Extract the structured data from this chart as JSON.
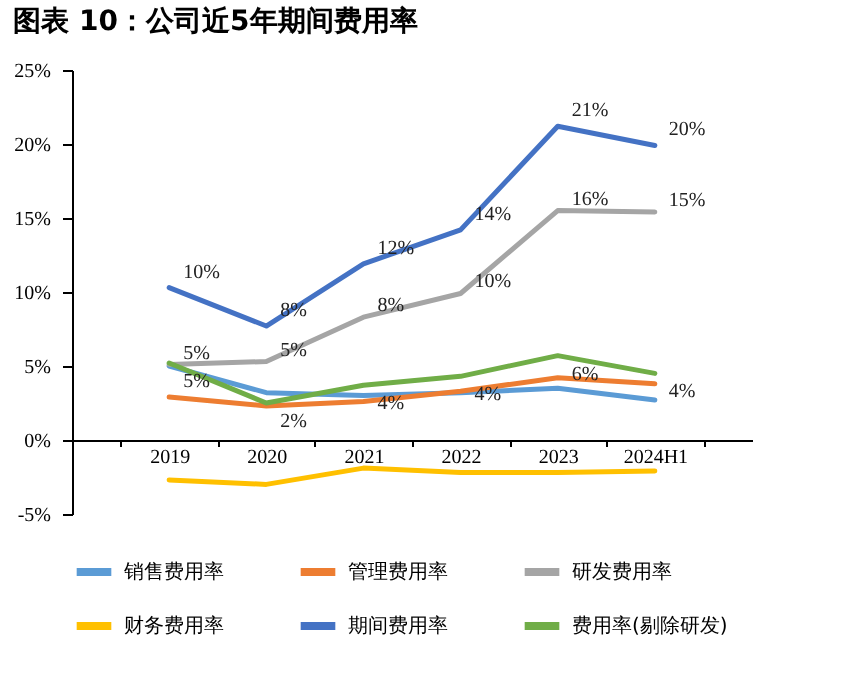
{
  "chart_data": {
    "type": "line",
    "title": "图表 10：公司近5年期间费用率",
    "categories": [
      "2019",
      "2020",
      "2021",
      "2022",
      "2023",
      "2024H1"
    ],
    "series": [
      {
        "name": "销售费用率",
        "color": "#5b9bd5",
        "values": [
          5.0,
          3.2,
          3.0,
          3.2,
          3.5,
          2.7
        ]
      },
      {
        "name": "管理费用率",
        "color": "#ed7d31",
        "values": [
          2.9,
          2.3,
          2.6,
          3.3,
          4.2,
          3.8
        ]
      },
      {
        "name": "研发费用率",
        "color": "#a5a5a5",
        "values": [
          5.1,
          5.3,
          8.3,
          9.9,
          15.5,
          15.4
        ],
        "value_labels": [
          "5%",
          "5%",
          "8%",
          "10%",
          "16%",
          "15%"
        ]
      },
      {
        "name": "财务费用率",
        "color": "#ffc000",
        "values": [
          -2.7,
          -3.0,
          -1.9,
          -2.2,
          -2.2,
          -2.1
        ]
      },
      {
        "name": "期间费用率",
        "color": "#4472c4",
        "values": [
          10.3,
          7.7,
          11.9,
          14.2,
          21.2,
          19.9
        ],
        "value_labels": [
          "10%",
          "8%",
          "12%",
          "14%",
          "21%",
          "20%"
        ]
      },
      {
        "name": "费用率(剔除研发)",
        "color": "#70ad47",
        "values": [
          5.2,
          2.5,
          3.7,
          4.3,
          5.7,
          4.5
        ],
        "value_labels": [
          "5%",
          "2%",
          "4%",
          "4%",
          "6%",
          "4%"
        ]
      }
    ],
    "ylim": [
      -5,
      25
    ],
    "yticks": [
      {
        "value": -5,
        "label": "-5%"
      },
      {
        "value": 0,
        "label": "0%"
      },
      {
        "value": 5,
        "label": "5%"
      },
      {
        "value": 10,
        "label": "10%"
      },
      {
        "value": 15,
        "label": "15%"
      },
      {
        "value": 20,
        "label": "20%"
      },
      {
        "value": 25,
        "label": "25%"
      }
    ],
    "grid": false,
    "legend": "bottom",
    "marker": "none",
    "line_style": "solid"
  }
}
